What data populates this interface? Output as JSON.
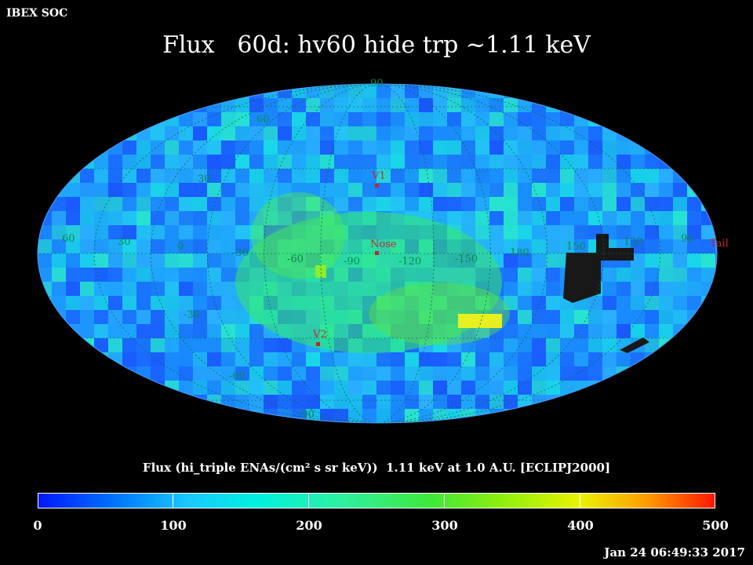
{
  "header": {
    "org_label": "IBEX SOC",
    "title": "Flux   60d: hv60 hide trp ~1.11 keV"
  },
  "map": {
    "projection": "Mollweide / Hammer-Aitoff all-sky",
    "grid_color": "#0a8a4a",
    "latitude_labels": [
      "60",
      "30",
      "-30",
      "-60",
      "-90",
      "90"
    ],
    "longitude_labels": [
      "60",
      "30",
      "0",
      "-30",
      "-60",
      "-90",
      "-120",
      "-150",
      "180",
      "150",
      "120",
      "90"
    ],
    "markers": [
      {
        "label": "V1"
      },
      {
        "label": "Nose"
      },
      {
        "label": "V2"
      },
      {
        "label": "Tail"
      }
    ],
    "colors": {
      "background": "#000000",
      "marker": "#c0282a",
      "missing_data": "#181818"
    }
  },
  "colorbar": {
    "label": "Flux (hi_triple ENAs/(cm² s sr keV))  1.11 keV at 1.0 A.U. [ECLIPJ2000]",
    "ticks": [
      "0",
      "100",
      "200",
      "300",
      "400",
      "500"
    ],
    "min": 0,
    "max": 500
  },
  "footer": {
    "timestamp": "Jan 24 06:49:33 2017"
  }
}
